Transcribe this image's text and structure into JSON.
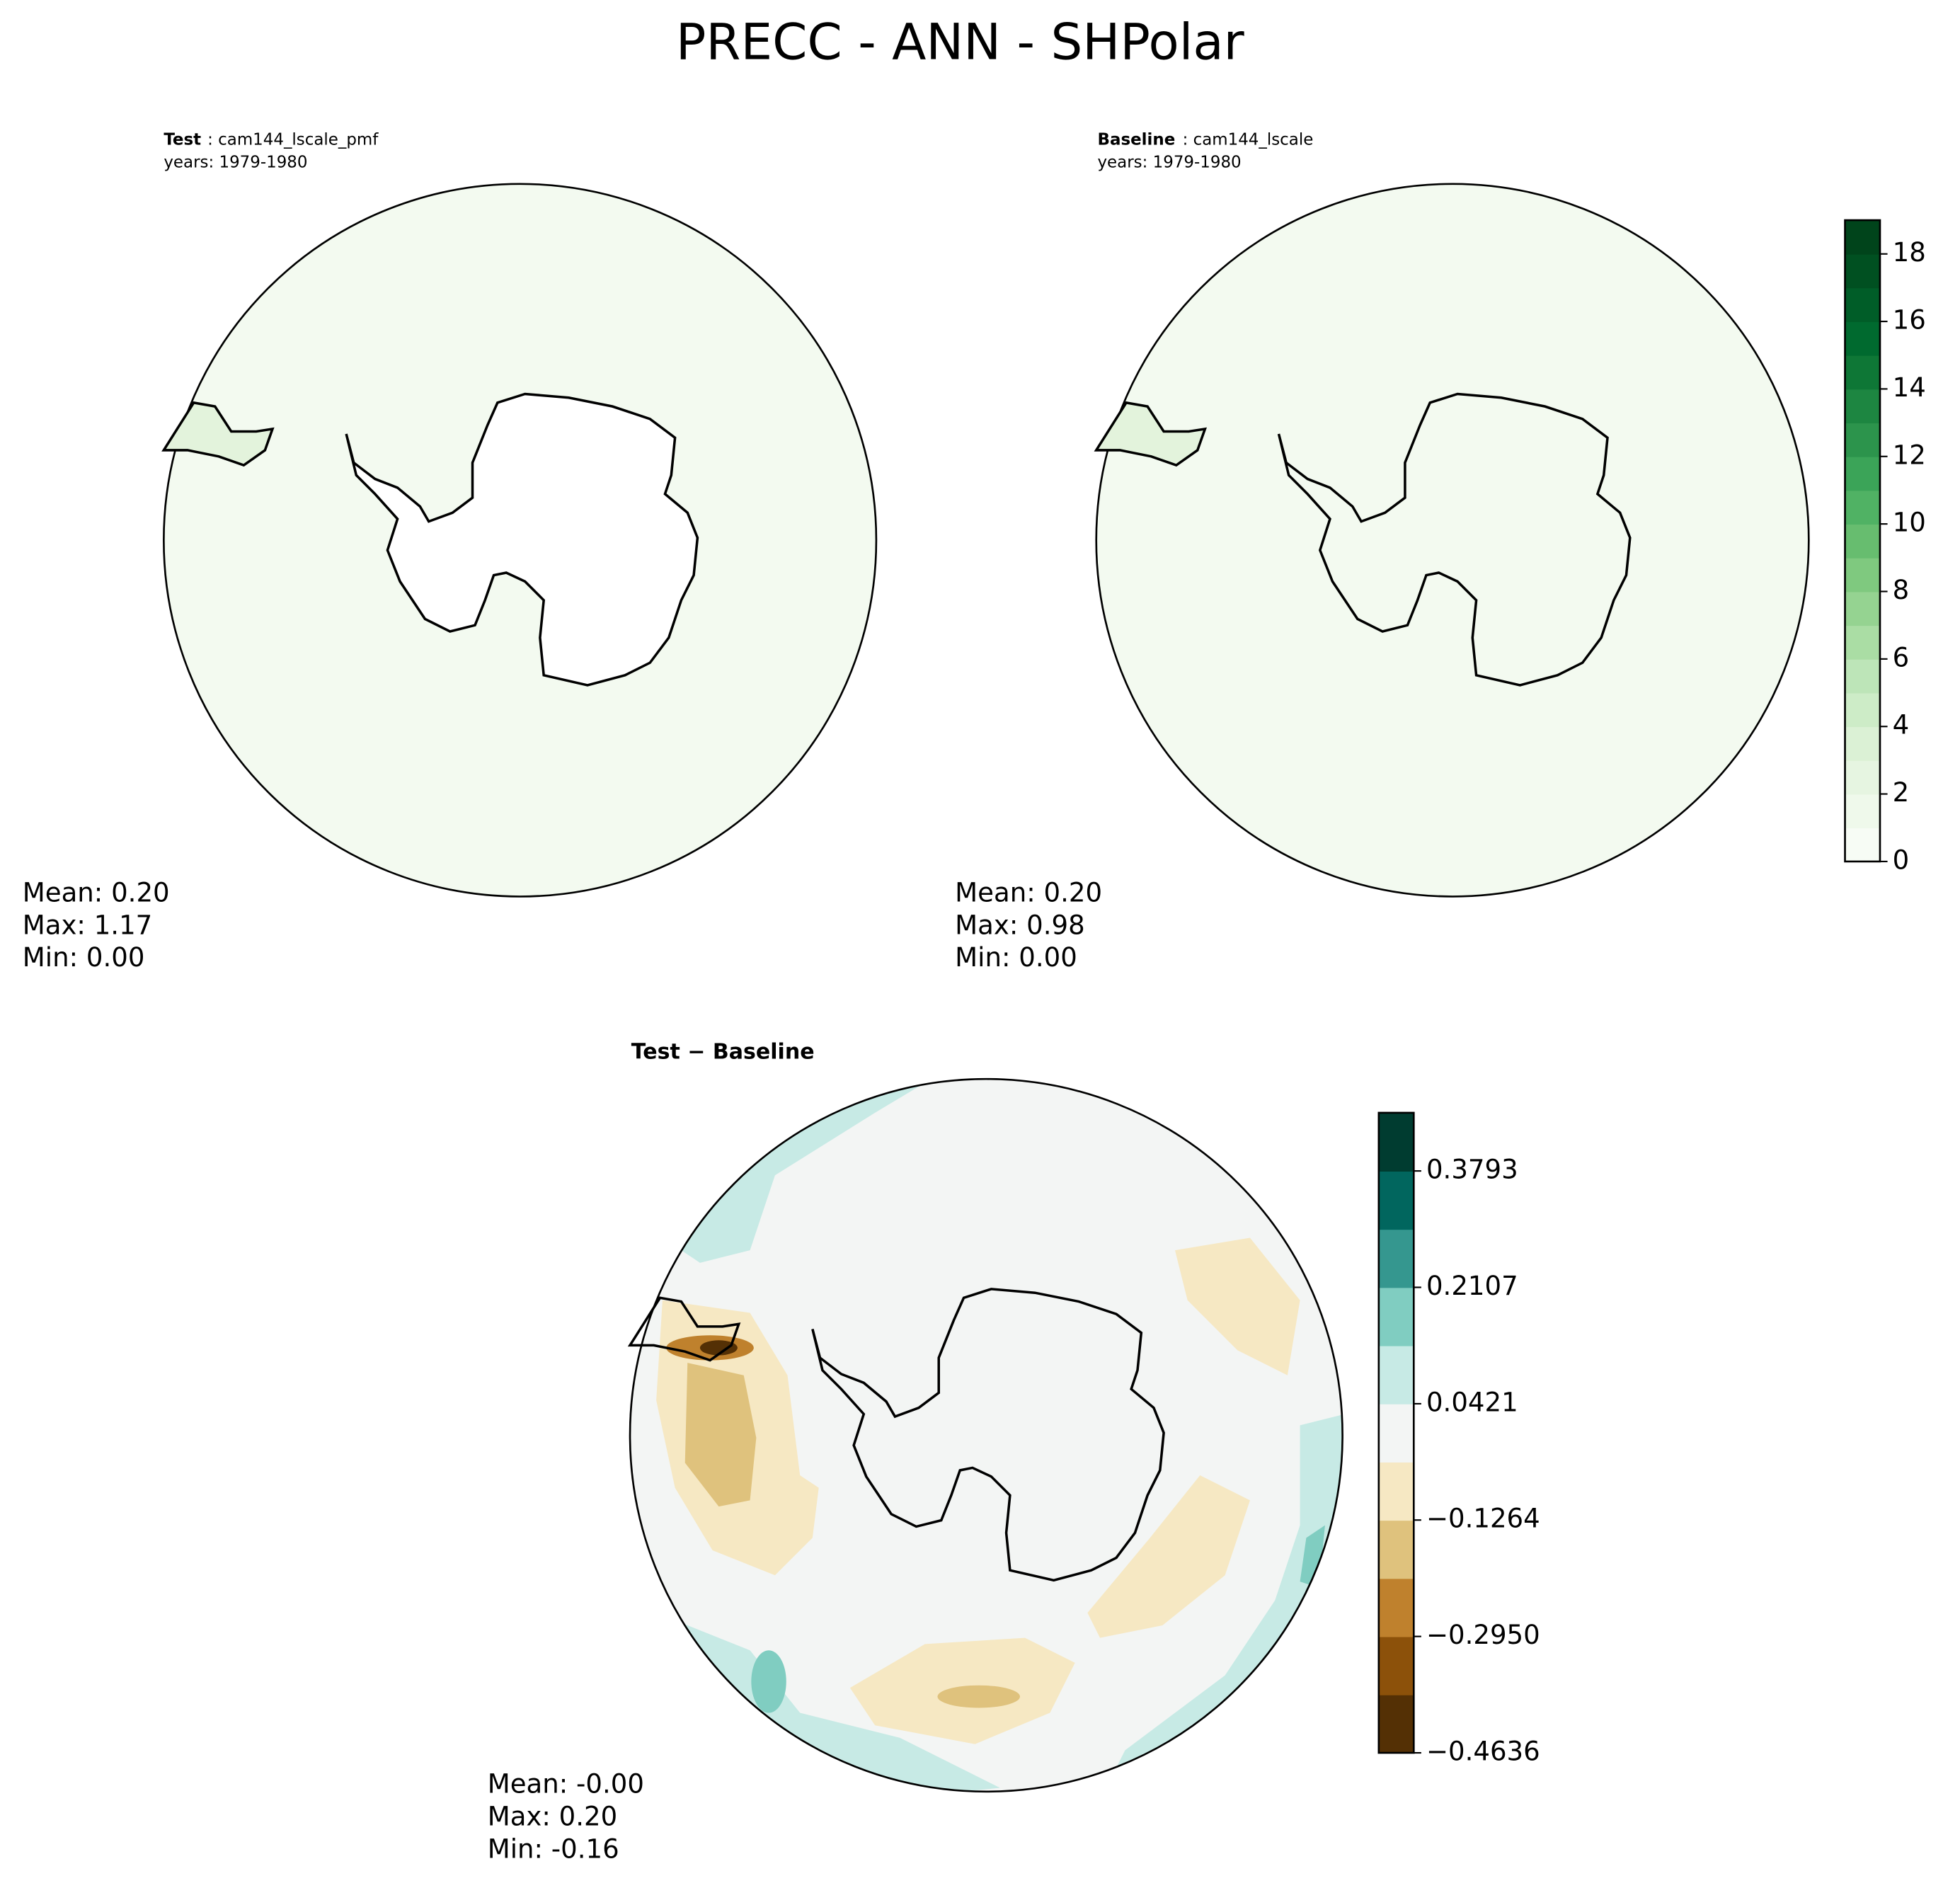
{
  "title": "PRECC - ANN - SHPolar",
  "panels": [
    {
      "label": "Test",
      "case": ": cam144_lscale_pmf",
      "years": "years: 1979-1980",
      "stats": [
        "Mean:  0.20",
        "Max:  1.17",
        "Min:  0.00"
      ]
    },
    {
      "label": "Baseline",
      "case": ": cam144_lscale",
      "years": "years: 1979-1980",
      "stats": [
        "Mean:  0.20",
        "Max:  0.98",
        "Min:  0.00"
      ]
    },
    {
      "label": "Test − Baseline",
      "stats": [
        "Mean: -0.00",
        "Max:  0.20",
        "Min: -0.16"
      ]
    }
  ],
  "colorbars": [
    {
      "lim": [
        0,
        19
      ],
      "ticks": [
        0,
        2,
        4,
        6,
        8,
        10,
        12,
        14,
        16,
        18
      ],
      "colors": [
        "#f7fcf5",
        "#eff9eb",
        "#e6f5e1",
        "#dbf1d5",
        "#cdecc7",
        "#bde5b8",
        "#aadda4",
        "#95d391",
        "#7fc97f",
        "#67bd6f",
        "#50b264",
        "#3ba458",
        "#2c944c",
        "#1d8641",
        "#0e7736",
        "#006a2f",
        "#005d28",
        "#005021",
        "#00441b"
      ]
    },
    {
      "lim": [
        -0.4636,
        0.4636
      ],
      "ticks": [
        {
          "value": -0.4636,
          "label": "−0.4636"
        },
        {
          "value": -0.295,
          "label": "−0.2950"
        },
        {
          "value": -0.1264,
          "label": "−0.1264"
        },
        0.0421,
        0.2107,
        0.3793
      ],
      "colors": [
        "#543005",
        "#8c510a",
        "#bf812d",
        "#dfc27d",
        "#f6e8c3",
        "#f3f5f4",
        "#c7eae5",
        "#80cdc1",
        "#35978f",
        "#01665e",
        "#003c30"
      ]
    }
  ]
}
